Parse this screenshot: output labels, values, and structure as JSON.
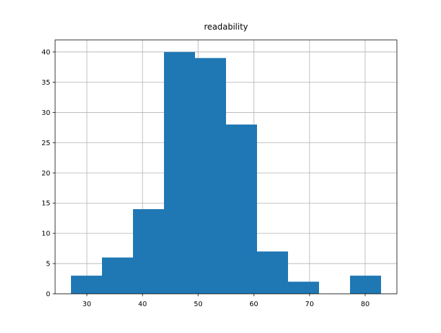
{
  "chart_data": {
    "type": "histogram",
    "title": "readability",
    "bins": [
      27.15,
      32.72,
      38.29,
      43.86,
      49.43,
      55.0,
      60.57,
      66.14,
      71.71,
      77.28,
      82.85
    ],
    "values": [
      3,
      6,
      14,
      40,
      39,
      28,
      7,
      2,
      0,
      3
    ],
    "color": "#1f77b4",
    "xlim": [
      24.3,
      85.7
    ],
    "xticks": [
      30,
      40,
      50,
      60,
      70,
      80
    ],
    "ylim": [
      0,
      42
    ],
    "yticks": [
      0,
      5,
      10,
      15,
      20,
      25,
      30,
      35,
      40
    ],
    "grid": true
  }
}
